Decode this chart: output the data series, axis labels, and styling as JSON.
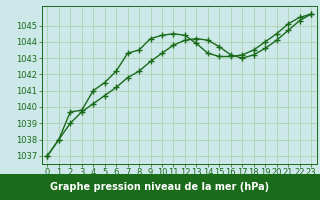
{
  "line1_x": [
    0,
    1,
    2,
    3,
    4,
    5,
    6,
    7,
    8,
    9,
    10,
    11,
    12,
    13,
    14,
    15,
    16,
    17,
    18,
    19,
    20,
    21,
    22,
    23
  ],
  "line1_y": [
    1037.0,
    1038.0,
    1039.7,
    1039.8,
    1041.0,
    1041.5,
    1042.2,
    1043.3,
    1043.5,
    1044.2,
    1044.4,
    1044.5,
    1044.4,
    1043.9,
    1043.3,
    1043.1,
    1043.1,
    1043.2,
    1043.5,
    1044.0,
    1044.5,
    1045.1,
    1045.5,
    1045.7
  ],
  "line2_x": [
    0,
    1,
    2,
    3,
    4,
    5,
    6,
    7,
    8,
    9,
    10,
    11,
    12,
    13,
    14,
    15,
    16,
    17,
    18,
    19,
    20,
    21,
    22,
    23
  ],
  "line2_y": [
    1037.0,
    1038.0,
    1039.0,
    1039.7,
    1040.2,
    1040.7,
    1041.2,
    1041.8,
    1042.2,
    1042.8,
    1043.3,
    1043.8,
    1044.1,
    1044.2,
    1044.1,
    1043.7,
    1043.2,
    1043.0,
    1043.2,
    1043.6,
    1044.1,
    1044.7,
    1045.3,
    1045.7
  ],
  "line_color": "#1a6b1a",
  "marker": "+",
  "markersize": 4,
  "linewidth": 1.0,
  "xlabel": "Graphe pression niveau de la mer (hPa)",
  "xlim": [
    -0.5,
    23.5
  ],
  "ylim": [
    1036.5,
    1046.2
  ],
  "yticks": [
    1037,
    1038,
    1039,
    1040,
    1041,
    1042,
    1043,
    1044,
    1045
  ],
  "xticks": [
    0,
    1,
    2,
    3,
    4,
    5,
    6,
    7,
    8,
    9,
    10,
    11,
    12,
    13,
    14,
    15,
    16,
    17,
    18,
    19,
    20,
    21,
    22,
    23
  ],
  "grid_color": "#a8cca8",
  "bg_color": "#cce8e8",
  "label_bg_color": "#1a6b1a",
  "label_text_color": "#ffffff",
  "text_color": "#1a6b1a",
  "font_size": 6,
  "xlabel_fontsize": 7
}
